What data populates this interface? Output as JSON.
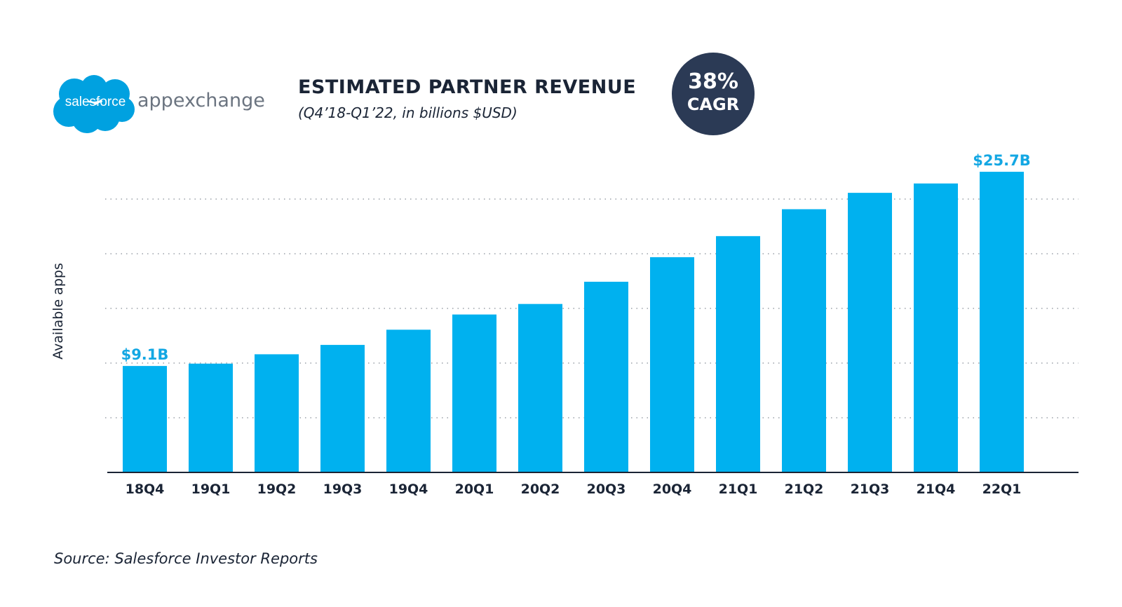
{
  "logo": {
    "cloud_text": "salesforce",
    "wordmark": "appexchange"
  },
  "header": {
    "title": "ESTIMATED PARTNER REVENUE",
    "subtitle": "(Q4’18-Q1’22, in billions $USD)"
  },
  "badge": {
    "value": "38%",
    "label": "CAGR"
  },
  "colors": {
    "bar": "#00b1ef",
    "data_label": "#13a7e3",
    "text": "#1a2435",
    "badge": "#2b3a55"
  },
  "chart_data": {
    "type": "bar",
    "categories": [
      "18Q4",
      "19Q1",
      "19Q2",
      "19Q3",
      "19Q4",
      "20Q1",
      "20Q2",
      "20Q3",
      "20Q4",
      "21Q1",
      "21Q2",
      "21Q3",
      "21Q4",
      "22Q1"
    ],
    "values": [
      9.1,
      9.3,
      10.1,
      10.9,
      12.2,
      13.5,
      14.4,
      16.3,
      18.4,
      20.2,
      22.5,
      23.9,
      24.7,
      25.7
    ],
    "data_labels": [
      "$9.1B",
      "",
      "",
      "",
      "",
      "",
      "",
      "",
      "",
      "",
      "",
      "",
      "",
      "$25.7B"
    ],
    "ylabel": "Available apps",
    "xlabel": "",
    "ylim": [
      0,
      29
    ],
    "grid": true
  },
  "source": "Source: Salesforce Investor Reports"
}
